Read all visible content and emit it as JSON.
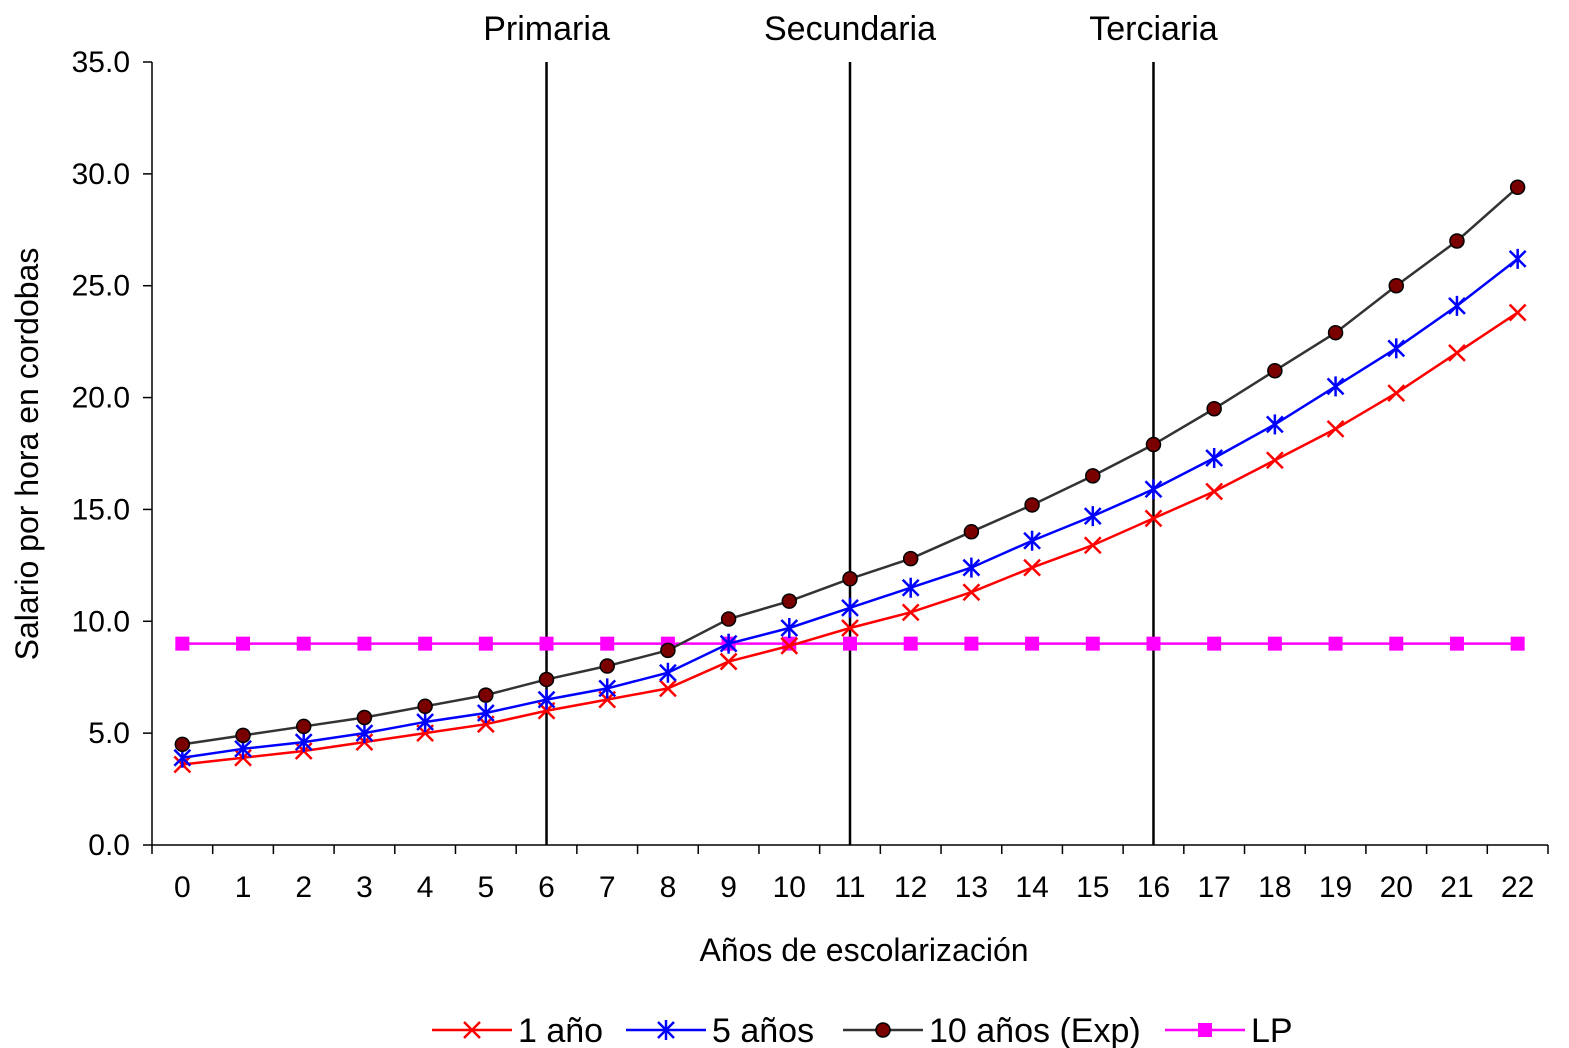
{
  "chart_data": {
    "type": "line",
    "title": "",
    "xlabel": "Años de escolarización",
    "ylabel": "Salario por hora en cordobas",
    "ylim": [
      0,
      35
    ],
    "yticks": [
      "0.0",
      "5.0",
      "10.0",
      "15.0",
      "20.0",
      "25.0",
      "30.0",
      "35.0"
    ],
    "x": [
      0,
      1,
      2,
      3,
      4,
      5,
      6,
      7,
      8,
      9,
      10,
      11,
      12,
      13,
      14,
      15,
      16,
      17,
      18,
      19,
      20,
      21,
      22
    ],
    "series": [
      {
        "name": "1 año",
        "color": "#ff0000",
        "marker": "x",
        "values": [
          3.6,
          3.9,
          4.2,
          4.6,
          5.0,
          5.4,
          6.0,
          6.5,
          7.0,
          8.2,
          8.9,
          9.7,
          10.4,
          11.3,
          12.4,
          13.4,
          14.6,
          15.8,
          17.2,
          18.6,
          20.2,
          22.0,
          23.8
        ]
      },
      {
        "name": "5 años",
        "color": "#0000ff",
        "marker": "asterisk",
        "values": [
          3.9,
          4.3,
          4.6,
          5.0,
          5.5,
          5.9,
          6.5,
          7.0,
          7.7,
          9.0,
          9.7,
          10.6,
          11.5,
          12.4,
          13.6,
          14.7,
          15.9,
          17.3,
          18.8,
          20.5,
          22.2,
          24.1,
          26.2
        ]
      },
      {
        "name": "10 años (Exp)",
        "color": "#333333",
        "marker_fill": "#7a0000",
        "marker": "circle",
        "values": [
          4.5,
          4.9,
          5.3,
          5.7,
          6.2,
          6.7,
          7.4,
          8.0,
          8.7,
          10.1,
          10.9,
          11.9,
          12.8,
          14.0,
          15.2,
          16.5,
          17.9,
          19.5,
          21.2,
          22.9,
          25.0,
          27.0,
          29.4
        ]
      },
      {
        "name": "LP",
        "color": "#ff00ff",
        "marker": "square",
        "values": [
          9.0,
          9.0,
          9.0,
          9.0,
          9.0,
          9.0,
          9.0,
          9.0,
          9.0,
          9.0,
          9.0,
          9.0,
          9.0,
          9.0,
          9.0,
          9.0,
          9.0,
          9.0,
          9.0,
          9.0,
          9.0,
          9.0,
          9.0
        ]
      }
    ],
    "annotations": [
      {
        "label": "Primaria",
        "x": 6
      },
      {
        "label": "Secundaria",
        "x": 11
      },
      {
        "label": "Terciaria",
        "x": 16
      }
    ],
    "grid": false,
    "legend": "bottom"
  }
}
